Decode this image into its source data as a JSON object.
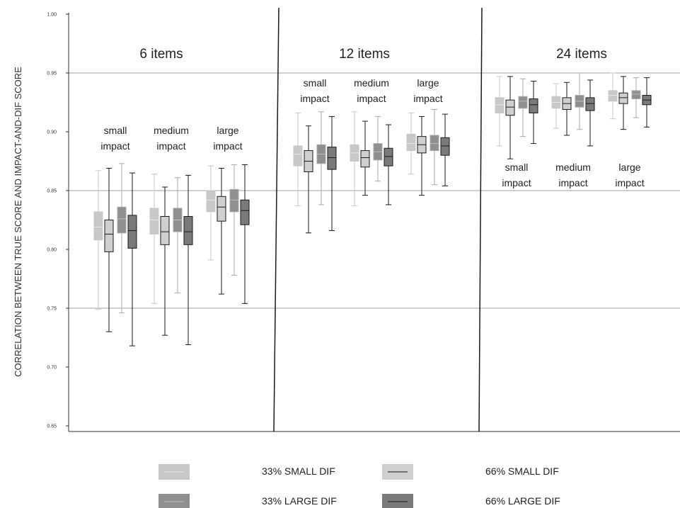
{
  "chart_data": {
    "type": "boxplot",
    "ylabel": "CORRELATION BETWEEN TRUE SCORE AND IMPACT-AND-DIF SCORE",
    "ylim": [
      0.65,
      1.0
    ],
    "yticks": [
      "0.65",
      "0.70",
      "0.75",
      "0.80",
      "0.85",
      "0.90",
      "0.95",
      "1.00"
    ],
    "reference_lines": [
      0.75,
      0.85,
      0.95
    ],
    "series": [
      {
        "name": "33% SMALL DIF",
        "color": "#c8c8c8",
        "stroke": "#c8c8c8",
        "median_color": "#e6e6e6"
      },
      {
        "name": "66% SMALL DIF",
        "color": "#cfcfcf",
        "stroke": "#1a1a1a",
        "median_color": "#1a1a1a"
      },
      {
        "name": "33% LARGE DIF",
        "color": "#8f8f8f",
        "stroke": "#aaaaaa",
        "median_color": "#bdbdbd"
      },
      {
        "name": "66% LARGE DIF",
        "color": "#7a7a7a",
        "stroke": "#1a1a1a",
        "median_color": "#1a1a1a"
      }
    ],
    "panels": [
      {
        "title": "6 items",
        "groups": [
          {
            "label": [
              "small",
              "impact"
            ],
            "boxes": [
              {
                "min": 0.749,
                "q1": 0.808,
                "median": 0.819,
                "q3": 0.832,
                "max": 0.867
              },
              {
                "min": 0.73,
                "q1": 0.798,
                "median": 0.813,
                "q3": 0.825,
                "max": 0.869
              },
              {
                "min": 0.746,
                "q1": 0.814,
                "median": 0.826,
                "q3": 0.836,
                "max": 0.873
              },
              {
                "min": 0.718,
                "q1": 0.801,
                "median": 0.816,
                "q3": 0.829,
                "max": 0.865
              }
            ]
          },
          {
            "label": [
              "medium",
              "impact"
            ],
            "boxes": [
              {
                "min": 0.754,
                "q1": 0.813,
                "median": 0.825,
                "q3": 0.835,
                "max": 0.864
              },
              {
                "min": 0.727,
                "q1": 0.804,
                "median": 0.815,
                "q3": 0.828,
                "max": 0.853
              },
              {
                "min": 0.763,
                "q1": 0.815,
                "median": 0.825,
                "q3": 0.835,
                "max": 0.861
              },
              {
                "min": 0.719,
                "q1": 0.804,
                "median": 0.815,
                "q3": 0.828,
                "max": 0.863
              }
            ]
          },
          {
            "label": [
              "large",
              "impact"
            ],
            "boxes": [
              {
                "min": 0.791,
                "q1": 0.832,
                "median": 0.842,
                "q3": 0.85,
                "max": 0.871
              },
              {
                "min": 0.762,
                "q1": 0.824,
                "median": 0.836,
                "q3": 0.845,
                "max": 0.869
              },
              {
                "min": 0.778,
                "q1": 0.832,
                "median": 0.842,
                "q3": 0.851,
                "max": 0.872
              },
              {
                "min": 0.754,
                "q1": 0.821,
                "median": 0.833,
                "q3": 0.842,
                "max": 0.872
              }
            ]
          }
        ]
      },
      {
        "title": "12 items",
        "groups": [
          {
            "label": [
              "small",
              "impact"
            ],
            "boxes": [
              {
                "min": 0.837,
                "q1": 0.871,
                "median": 0.881,
                "q3": 0.888,
                "max": 0.916
              },
              {
                "min": 0.814,
                "q1": 0.866,
                "median": 0.875,
                "q3": 0.884,
                "max": 0.905
              },
              {
                "min": 0.838,
                "q1": 0.873,
                "median": 0.881,
                "q3": 0.889,
                "max": 0.917
              },
              {
                "min": 0.816,
                "q1": 0.868,
                "median": 0.878,
                "q3": 0.887,
                "max": 0.913
              }
            ]
          },
          {
            "label": [
              "medium",
              "impact"
            ],
            "boxes": [
              {
                "min": 0.837,
                "q1": 0.875,
                "median": 0.882,
                "q3": 0.889,
                "max": 0.917
              },
              {
                "min": 0.846,
                "q1": 0.87,
                "median": 0.878,
                "q3": 0.884,
                "max": 0.909
              },
              {
                "min": 0.858,
                "q1": 0.876,
                "median": 0.883,
                "q3": 0.89,
                "max": 0.913
              },
              {
                "min": 0.838,
                "q1": 0.871,
                "median": 0.879,
                "q3": 0.886,
                "max": 0.906
              }
            ]
          },
          {
            "label": [
              "large",
              "impact"
            ],
            "boxes": [
              {
                "min": 0.864,
                "q1": 0.884,
                "median": 0.89,
                "q3": 0.898,
                "max": 0.916
              },
              {
                "min": 0.846,
                "q1": 0.882,
                "median": 0.889,
                "q3": 0.896,
                "max": 0.913
              },
              {
                "min": 0.855,
                "q1": 0.884,
                "median": 0.89,
                "q3": 0.897,
                "max": 0.919
              },
              {
                "min": 0.854,
                "q1": 0.88,
                "median": 0.888,
                "q3": 0.895,
                "max": 0.915
              }
            ]
          }
        ]
      },
      {
        "title": "24 items",
        "groups": [
          {
            "label": [
              "small",
              "impact"
            ],
            "boxes": [
              {
                "min": 0.888,
                "q1": 0.916,
                "median": 0.923,
                "q3": 0.929,
                "max": 0.947
              },
              {
                "min": 0.877,
                "q1": 0.914,
                "median": 0.921,
                "q3": 0.927,
                "max": 0.947
              },
              {
                "min": 0.896,
                "q1": 0.92,
                "median": 0.926,
                "q3": 0.93,
                "max": 0.945
              },
              {
                "min": 0.89,
                "q1": 0.916,
                "median": 0.923,
                "q3": 0.928,
                "max": 0.943
              }
            ]
          },
          {
            "label": [
              "medium",
              "impact"
            ],
            "boxes": [
              {
                "min": 0.903,
                "q1": 0.92,
                "median": 0.925,
                "q3": 0.93,
                "max": 0.941
              },
              {
                "min": 0.897,
                "q1": 0.919,
                "median": 0.924,
                "q3": 0.929,
                "max": 0.942
              },
              {
                "min": 0.902,
                "q1": 0.921,
                "median": 0.926,
                "q3": 0.931,
                "max": 0.95
              },
              {
                "min": 0.888,
                "q1": 0.918,
                "median": 0.924,
                "q3": 0.929,
                "max": 0.944
              }
            ]
          },
          {
            "label": [
              "large",
              "impact"
            ],
            "boxes": [
              {
                "min": 0.911,
                "q1": 0.926,
                "median": 0.931,
                "q3": 0.935,
                "max": 0.95
              },
              {
                "min": 0.902,
                "q1": 0.924,
                "median": 0.929,
                "q3": 0.933,
                "max": 0.947
              },
              {
                "min": 0.912,
                "q1": 0.928,
                "median": 0.932,
                "q3": 0.935,
                "max": 0.946
              },
              {
                "min": 0.904,
                "q1": 0.923,
                "median": 0.927,
                "q3": 0.931,
                "max": 0.946
              }
            ]
          }
        ]
      }
    ],
    "legend": {
      "placement": "bottom",
      "entries": [
        "33% SMALL DIF",
        "66% SMALL DIF",
        "33% LARGE DIF",
        "66% LARGE DIF"
      ]
    }
  }
}
